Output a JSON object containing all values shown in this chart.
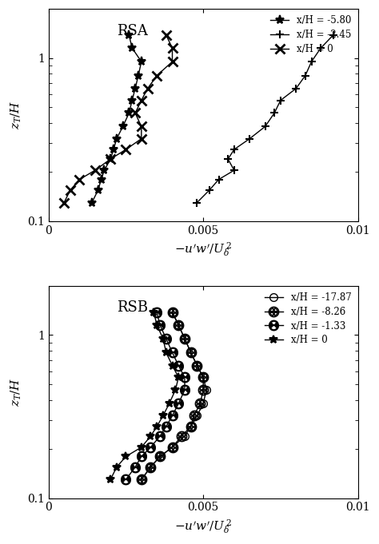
{
  "RSA": {
    "label": "RSA",
    "series": [
      {
        "label": "x/H = -5.80",
        "marker": "*",
        "markersize": 7,
        "markerfacecolor": "black",
        "x": [
          0.0014,
          0.0016,
          0.0017,
          0.0018,
          0.002,
          0.0021,
          0.0022,
          0.0024,
          0.0026,
          0.0027,
          0.0028,
          0.0029,
          0.003,
          0.0027,
          0.0026
        ],
        "y": [
          0.13,
          0.155,
          0.18,
          0.205,
          0.24,
          0.275,
          0.32,
          0.38,
          0.46,
          0.55,
          0.65,
          0.78,
          0.95,
          1.15,
          1.38
        ]
      },
      {
        "label": "x/H = -2.45",
        "marker": "s",
        "markersize": 6,
        "markerfacecolor": "none",
        "x": [
          0.0048,
          0.0052,
          0.0055,
          0.006,
          0.0058,
          0.006,
          0.0065,
          0.007,
          0.0073,
          0.0075,
          0.008,
          0.0083,
          0.0085,
          0.0088,
          0.0092
        ],
        "y": [
          0.13,
          0.155,
          0.18,
          0.205,
          0.24,
          0.275,
          0.32,
          0.38,
          0.46,
          0.55,
          0.65,
          0.78,
          0.95,
          1.15,
          1.38
        ]
      },
      {
        "label": "x/H = 0",
        "marker": "x",
        "markersize": 8,
        "markerfacecolor": "black",
        "x": [
          0.0005,
          0.0007,
          0.001,
          0.0015,
          0.002,
          0.0025,
          0.003,
          0.003,
          0.0028,
          0.003,
          0.0032,
          0.0035,
          0.004,
          0.004,
          0.0038
        ],
        "y": [
          0.13,
          0.155,
          0.18,
          0.205,
          0.24,
          0.275,
          0.32,
          0.38,
          0.46,
          0.55,
          0.65,
          0.78,
          0.95,
          1.15,
          1.38
        ]
      }
    ]
  },
  "RSB": {
    "label": "RSB",
    "series": [
      {
        "label": "x/H = -17.87",
        "marker": "o",
        "markersize": 7,
        "markerfacecolor": "none",
        "x": [
          0.003,
          0.0033,
          0.0036,
          0.004,
          0.0044,
          0.0046,
          0.0048,
          0.005,
          0.0051,
          0.005,
          0.0048,
          0.0046,
          0.0044,
          0.0042,
          0.004
        ],
        "y": [
          0.13,
          0.155,
          0.18,
          0.205,
          0.24,
          0.275,
          0.32,
          0.38,
          0.46,
          0.55,
          0.65,
          0.78,
          0.95,
          1.15,
          1.38
        ]
      },
      {
        "label": "x/H = -8.26",
        "marker": "$\\oplus$",
        "markersize": 9,
        "markerfacecolor": "none",
        "x": [
          0.003,
          0.0033,
          0.0036,
          0.004,
          0.0043,
          0.0046,
          0.0047,
          0.0049,
          0.005,
          0.005,
          0.0048,
          0.0046,
          0.0044,
          0.0042,
          0.004
        ],
        "y": [
          0.13,
          0.155,
          0.18,
          0.205,
          0.24,
          0.275,
          0.32,
          0.38,
          0.46,
          0.55,
          0.65,
          0.78,
          0.95,
          1.15,
          1.38
        ]
      },
      {
        "label": "x/H = -1.33",
        "marker": "$\\large\\bf{\\circleddash}$",
        "markersize": 9,
        "markerfacecolor": "black",
        "x": [
          0.0025,
          0.0028,
          0.003,
          0.0033,
          0.0036,
          0.0038,
          0.004,
          0.0042,
          0.0044,
          0.0044,
          0.0042,
          0.004,
          0.0038,
          0.0036,
          0.0035
        ],
        "y": [
          0.13,
          0.155,
          0.18,
          0.205,
          0.24,
          0.275,
          0.32,
          0.38,
          0.46,
          0.55,
          0.65,
          0.78,
          0.95,
          1.15,
          1.38
        ]
      },
      {
        "label": "x/H = 0",
        "marker": "*",
        "markersize": 7,
        "markerfacecolor": "black",
        "x": [
          0.002,
          0.0022,
          0.0025,
          0.003,
          0.0033,
          0.0035,
          0.0037,
          0.0039,
          0.0041,
          0.0042,
          0.004,
          0.0038,
          0.0037,
          0.0035,
          0.0034
        ],
        "y": [
          0.13,
          0.155,
          0.18,
          0.205,
          0.24,
          0.275,
          0.32,
          0.38,
          0.46,
          0.55,
          0.65,
          0.78,
          0.95,
          1.15,
          1.38
        ]
      }
    ]
  },
  "xlim": [
    0,
    0.01
  ],
  "ylim": [
    0.1,
    2.0
  ],
  "xticks": [
    0,
    0.005,
    0.01
  ],
  "xticklabels": [
    "0",
    "0.005",
    "0.01"
  ],
  "linewidth": 1.0,
  "panels": [
    "RSA",
    "RSB"
  ]
}
